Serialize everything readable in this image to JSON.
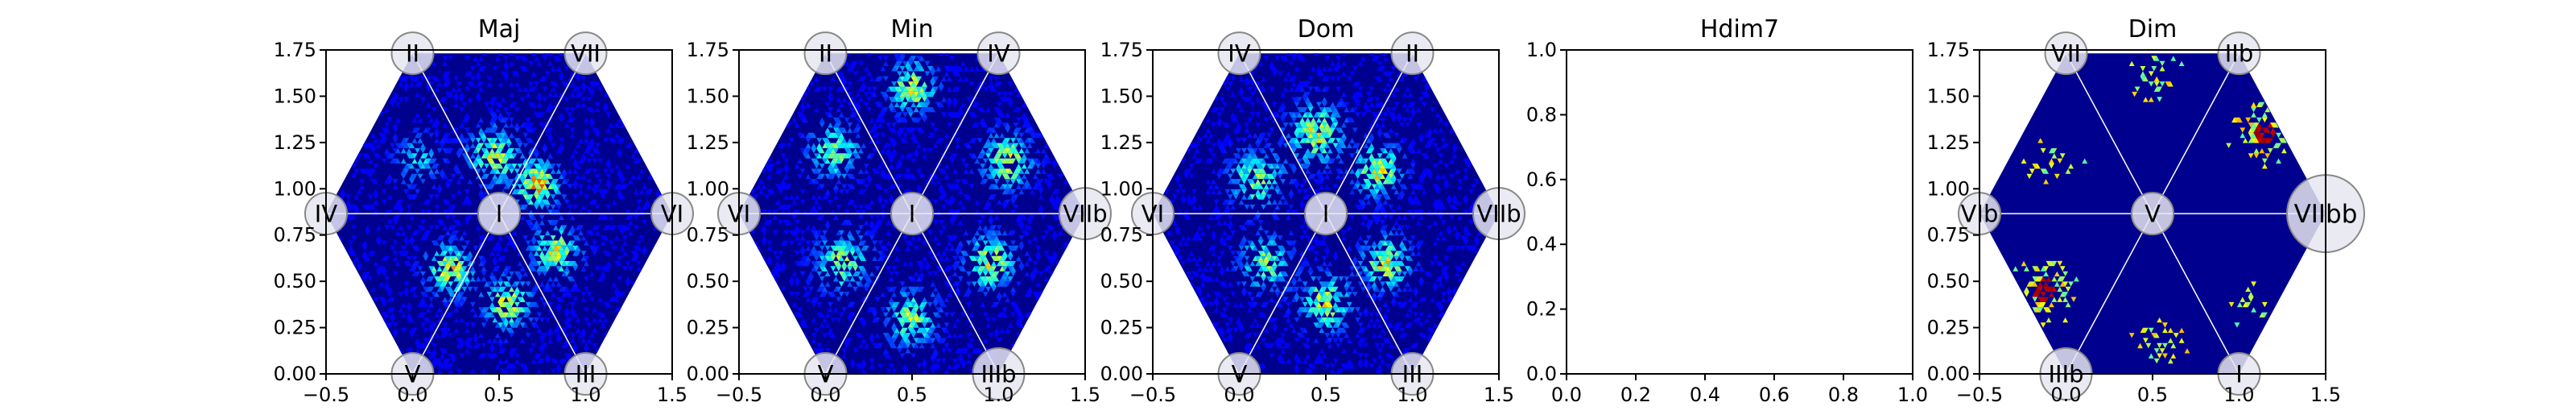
{
  "chart_data": [
    {
      "type": "heatmap",
      "title": "Maj",
      "xlim": [
        -0.5,
        1.5
      ],
      "ylim": [
        0,
        1.75
      ],
      "xticks": [
        "−0.5",
        "0.0",
        "0.5",
        "1.0",
        "1.5"
      ],
      "yticks": [
        "0.00",
        "0.25",
        "0.50",
        "0.75",
        "1.00",
        "1.25",
        "1.50",
        "1.75"
      ],
      "colormap": "jet",
      "background_color": "#00008f",
      "nodes": [
        {
          "label": "I",
          "x": 0.5,
          "y": 0.866
        },
        {
          "label": "II",
          "x": 0.0,
          "y": 1.732
        },
        {
          "label": "VII",
          "x": 1.0,
          "y": 1.732
        },
        {
          "label": "IV",
          "x": -0.5,
          "y": 0.866
        },
        {
          "label": "VI",
          "x": 1.5,
          "y": 0.866
        },
        {
          "label": "V",
          "x": 0.0,
          "y": 0.0
        },
        {
          "label": "III",
          "x": 1.0,
          "y": 0.0
        }
      ],
      "hotspots": [
        {
          "x": 0.47,
          "y": 1.18,
          "w": 0.13,
          "i": 0.55
        },
        {
          "x": 0.72,
          "y": 1.02,
          "w": 0.11,
          "i": 0.7
        },
        {
          "x": 0.55,
          "y": 0.38,
          "w": 0.12,
          "i": 0.55
        },
        {
          "x": 0.22,
          "y": 0.56,
          "w": 0.12,
          "i": 0.6
        },
        {
          "x": 0.83,
          "y": 0.66,
          "w": 0.12,
          "i": 0.55
        },
        {
          "x": 0.03,
          "y": 1.15,
          "w": 0.12,
          "i": 0.28
        }
      ]
    },
    {
      "type": "heatmap",
      "title": "Min",
      "xlim": [
        -0.5,
        1.5
      ],
      "ylim": [
        0,
        1.75
      ],
      "xticks": [
        "−0.5",
        "0.0",
        "0.5",
        "1.0",
        "1.5"
      ],
      "yticks": [
        "0.00",
        "0.25",
        "0.50",
        "0.75",
        "1.00",
        "1.25",
        "1.50",
        "1.75"
      ],
      "colormap": "jet",
      "background_color": "#00008f",
      "nodes": [
        {
          "label": "I",
          "x": 0.5,
          "y": 0.866
        },
        {
          "label": "II",
          "x": 0.0,
          "y": 1.732
        },
        {
          "label": "IV",
          "x": 1.0,
          "y": 1.732
        },
        {
          "label": "VI",
          "x": -0.5,
          "y": 0.866
        },
        {
          "label": "VIIb",
          "x": 1.5,
          "y": 0.866
        },
        {
          "label": "V",
          "x": 0.0,
          "y": 0.0
        },
        {
          "label": "IIIb",
          "x": 1.0,
          "y": 0.0
        }
      ],
      "hotspots": [
        {
          "x": 0.5,
          "y": 1.55,
          "w": 0.12,
          "i": 0.6
        },
        {
          "x": 1.05,
          "y": 1.15,
          "w": 0.13,
          "i": 0.55
        },
        {
          "x": 0.05,
          "y": 1.2,
          "w": 0.13,
          "i": 0.45
        },
        {
          "x": 0.95,
          "y": 0.6,
          "w": 0.13,
          "i": 0.55
        },
        {
          "x": 0.5,
          "y": 0.3,
          "w": 0.13,
          "i": 0.5
        },
        {
          "x": 0.1,
          "y": 0.6,
          "w": 0.14,
          "i": 0.45
        }
      ]
    },
    {
      "type": "heatmap",
      "title": "Dom",
      "xlim": [
        -0.5,
        1.5
      ],
      "ylim": [
        0,
        1.75
      ],
      "xticks": [
        "−0.5",
        "0.0",
        "0.5",
        "1.0",
        "1.5"
      ],
      "yticks": [
        "0.00",
        "0.25",
        "0.50",
        "0.75",
        "1.00",
        "1.25",
        "1.50",
        "1.75"
      ],
      "colormap": "jet",
      "background_color": "#00008f",
      "nodes": [
        {
          "label": "I",
          "x": 0.5,
          "y": 0.866
        },
        {
          "label": "IV",
          "x": 0.0,
          "y": 1.732
        },
        {
          "label": "II",
          "x": 1.0,
          "y": 1.732
        },
        {
          "label": "VI",
          "x": -0.5,
          "y": 0.866
        },
        {
          "label": "VIIb",
          "x": 1.5,
          "y": 0.866
        },
        {
          "label": "V",
          "x": 0.0,
          "y": 0.0
        },
        {
          "label": "III",
          "x": 1.0,
          "y": 0.0
        }
      ],
      "hotspots": [
        {
          "x": 0.45,
          "y": 1.3,
          "w": 0.14,
          "i": 0.55
        },
        {
          "x": 0.8,
          "y": 1.1,
          "w": 0.12,
          "i": 0.6
        },
        {
          "x": 0.1,
          "y": 1.05,
          "w": 0.14,
          "i": 0.45
        },
        {
          "x": 0.85,
          "y": 0.6,
          "w": 0.12,
          "i": 0.6
        },
        {
          "x": 0.5,
          "y": 0.38,
          "w": 0.13,
          "i": 0.55
        },
        {
          "x": 0.15,
          "y": 0.6,
          "w": 0.13,
          "i": 0.45
        }
      ]
    },
    {
      "type": "heatmap",
      "title": "Hdim7",
      "empty": true,
      "xlim": [
        0,
        1
      ],
      "ylim": [
        0,
        1
      ],
      "xticks": [
        "0.0",
        "0.2",
        "0.4",
        "0.6",
        "0.8",
        "1.0"
      ],
      "yticks": [
        "0.0",
        "0.2",
        "0.4",
        "0.6",
        "0.8",
        "1.0"
      ]
    },
    {
      "type": "heatmap",
      "title": "Dim",
      "xlim": [
        -0.5,
        1.5
      ],
      "ylim": [
        0,
        1.75
      ],
      "xticks": [
        "−0.5",
        "0.0",
        "0.5",
        "1.0",
        "1.5"
      ],
      "yticks": [
        "0.00",
        "0.25",
        "0.50",
        "0.75",
        "1.00",
        "1.25",
        "1.50",
        "1.75"
      ],
      "colormap": "jet",
      "background_color": "#00008f",
      "sparse": true,
      "nodes": [
        {
          "label": "V",
          "x": 0.5,
          "y": 0.866
        },
        {
          "label": "VII",
          "x": 0.0,
          "y": 1.732
        },
        {
          "label": "IIb",
          "x": 1.0,
          "y": 1.732
        },
        {
          "label": "VIb",
          "x": -0.5,
          "y": 0.866
        },
        {
          "label": "VIIbb",
          "x": 1.5,
          "y": 0.866
        },
        {
          "label": "IIIb",
          "x": 0.0,
          "y": 0.0
        },
        {
          "label": "I",
          "x": 1.0,
          "y": 0.0
        }
      ],
      "hotspots": [
        {
          "x": 1.15,
          "y": 1.3,
          "w": 0.12,
          "i": 0.95
        },
        {
          "x": -0.12,
          "y": 0.45,
          "w": 0.12,
          "i": 0.95
        },
        {
          "x": 0.5,
          "y": 1.6,
          "w": 0.1,
          "i": 0.45
        },
        {
          "x": -0.1,
          "y": 1.15,
          "w": 0.1,
          "i": 0.45
        },
        {
          "x": 1.05,
          "y": 0.4,
          "w": 0.1,
          "i": 0.45
        },
        {
          "x": 0.55,
          "y": 0.15,
          "w": 0.1,
          "i": 0.45
        }
      ]
    }
  ]
}
